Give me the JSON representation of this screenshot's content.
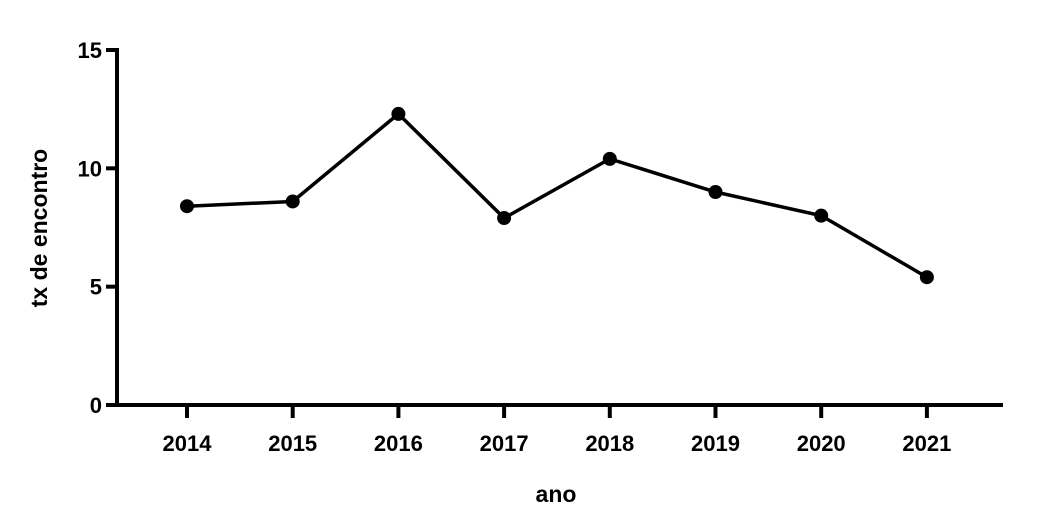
{
  "chart_data": {
    "type": "line",
    "title": "",
    "xlabel": "ano",
    "ylabel": "tx de encontro",
    "x": [
      "2014",
      "2015",
      "2016",
      "2017",
      "2018",
      "2019",
      "2020",
      "2021"
    ],
    "series": [
      {
        "values": [
          8.4,
          8.6,
          12.3,
          7.9,
          10.4,
          9.0,
          8.0,
          5.4
        ]
      }
    ],
    "ylim": [
      0,
      15
    ],
    "yticks": [
      0,
      5,
      10,
      15
    ],
    "grid": false,
    "legend": "none",
    "colors": {
      "line": "#000000",
      "marker": "#000000",
      "axis": "#000000"
    }
  }
}
